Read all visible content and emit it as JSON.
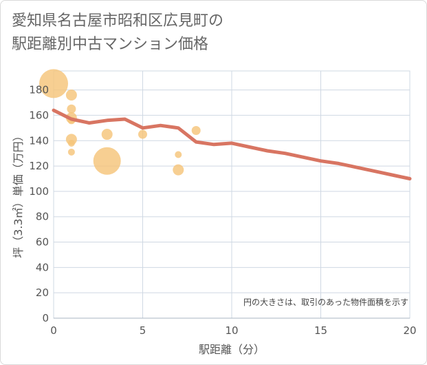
{
  "title_line1": "愛知県名古屋市昭和区広見町の",
  "title_line2": "駅距離別中古マンション価格",
  "chart_data": {
    "type": "scatter",
    "title": "愛知県名古屋市昭和区広見町の駅距離別中古マンション価格",
    "xlabel": "駅距離（分）",
    "ylabel": "坪（3.3㎡）単価（万円）",
    "xlim": [
      0,
      20
    ],
    "ylim": [
      0,
      195
    ],
    "xticks": [
      0,
      5,
      10,
      15,
      20
    ],
    "yticks": [
      0,
      20,
      40,
      60,
      80,
      100,
      120,
      140,
      160,
      180
    ],
    "grid": true,
    "note": "円の大きさは、取引のあった物件面積を示す",
    "bubble_color": "#f5c57a",
    "line_color": "#d87562",
    "bubbles": [
      {
        "x": 0,
        "y": 185,
        "size": 4.2
      },
      {
        "x": 1,
        "y": 176,
        "size": 1.6
      },
      {
        "x": 1,
        "y": 165,
        "size": 1.3
      },
      {
        "x": 1,
        "y": 158,
        "size": 1.6
      },
      {
        "x": 1,
        "y": 156,
        "size": 1.1
      },
      {
        "x": 1,
        "y": 141,
        "size": 1.6
      },
      {
        "x": 1,
        "y": 138,
        "size": 1.0
      },
      {
        "x": 1,
        "y": 131,
        "size": 1.0
      },
      {
        "x": 3,
        "y": 145,
        "size": 1.6
      },
      {
        "x": 3,
        "y": 124,
        "size": 4.0
      },
      {
        "x": 5,
        "y": 145,
        "size": 1.3
      },
      {
        "x": 7,
        "y": 129,
        "size": 1.0
      },
      {
        "x": 7,
        "y": 117,
        "size": 1.6
      },
      {
        "x": 8,
        "y": 148,
        "size": 1.3
      }
    ],
    "series": [
      {
        "name": "trend",
        "x": [
          0,
          1,
          2,
          3,
          4,
          5,
          6,
          7,
          8,
          9,
          10,
          11,
          12,
          13,
          14,
          15,
          16,
          17,
          18,
          19,
          20
        ],
        "values": [
          164,
          157,
          154,
          156,
          157,
          150,
          152,
          150,
          139,
          137,
          138,
          135,
          132,
          130,
          127,
          124,
          122,
          119,
          116,
          113,
          110
        ]
      }
    ]
  }
}
